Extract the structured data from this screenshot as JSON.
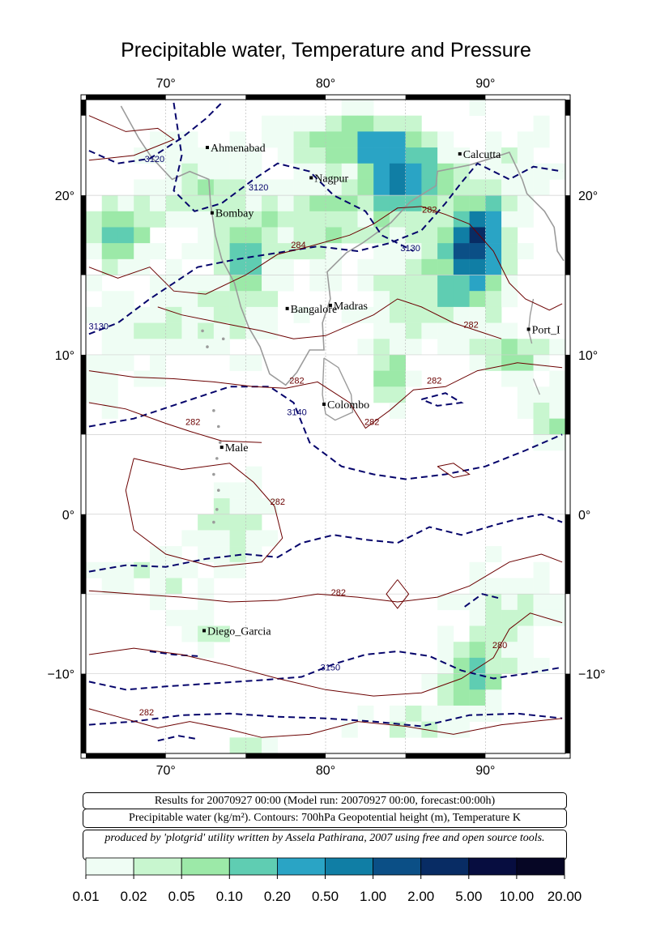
{
  "title": "Precipitable water, Temperature and Pressure",
  "map": {
    "lon_range": [
      65,
      95
    ],
    "lat_range": [
      -15,
      26
    ],
    "lon_ticks": [
      {
        "value": 70,
        "label": "70°"
      },
      {
        "value": 80,
        "label": "80°"
      },
      {
        "value": 90,
        "label": "90°"
      }
    ],
    "lat_ticks": [
      {
        "value": 20,
        "label": "20°"
      },
      {
        "value": 10,
        "label": "10°"
      },
      {
        "value": 0,
        "label": "0°"
      },
      {
        "value": -10,
        "label": "−10°"
      }
    ],
    "places": [
      {
        "name": "Ahmenabad",
        "lon": 72.6,
        "lat": 23.0
      },
      {
        "name": "Nagpur",
        "lon": 79.1,
        "lat": 21.1
      },
      {
        "name": "Calcutta",
        "lon": 88.4,
        "lat": 22.6
      },
      {
        "name": "Bombay",
        "lon": 72.9,
        "lat": 18.9
      },
      {
        "name": "Bangalore",
        "lon": 77.6,
        "lat": 12.9
      },
      {
        "name": "Madras",
        "lon": 80.3,
        "lat": 13.1
      },
      {
        "name": "Port_I",
        "lon": 92.7,
        "lat": 11.6
      },
      {
        "name": "Colombo",
        "lon": 79.9,
        "lat": 6.9
      },
      {
        "name": "Male",
        "lon": 73.5,
        "lat": 4.2
      },
      {
        "name": "Diego_Garcia",
        "lon": 72.4,
        "lat": -7.3
      }
    ],
    "contour_labels": [
      {
        "text": "3120",
        "lon": 69.3,
        "lat": 22.1,
        "kind": "height"
      },
      {
        "text": "3120",
        "lon": 75.8,
        "lat": 20.3,
        "kind": "height"
      },
      {
        "text": "3130",
        "lon": 85.3,
        "lat": 16.5,
        "kind": "height"
      },
      {
        "text": "3130",
        "lon": 65.8,
        "lat": 11.6,
        "kind": "height"
      },
      {
        "text": "3140",
        "lon": 78.2,
        "lat": 6.2,
        "kind": "height"
      },
      {
        "text": "3150",
        "lon": 80.3,
        "lat": -9.8,
        "kind": "height"
      },
      {
        "text": "284",
        "lon": 78.3,
        "lat": 16.7,
        "kind": "temp"
      },
      {
        "text": "282",
        "lon": 86.5,
        "lat": 18.9,
        "kind": "temp"
      },
      {
        "text": "282",
        "lon": 89.1,
        "lat": 11.7,
        "kind": "temp"
      },
      {
        "text": "282",
        "lon": 86.8,
        "lat": 8.2,
        "kind": "temp"
      },
      {
        "text": "282",
        "lon": 78.2,
        "lat": 8.2,
        "kind": "temp"
      },
      {
        "text": "282",
        "lon": 71.7,
        "lat": 5.6,
        "kind": "temp"
      },
      {
        "text": "282",
        "lon": 82.9,
        "lat": 5.6,
        "kind": "temp"
      },
      {
        "text": "282",
        "lon": 77.0,
        "lat": 0.6,
        "kind": "temp"
      },
      {
        "text": "282",
        "lon": 80.8,
        "lat": -5.1,
        "kind": "temp"
      },
      {
        "text": "280",
        "lon": 90.9,
        "lat": -8.4,
        "kind": "temp"
      },
      {
        "text": "282",
        "lon": 68.8,
        "lat": -12.6,
        "kind": "temp"
      }
    ]
  },
  "info": {
    "results_line": "Results for 20070927 00:00 (Model run: 20070927 00:00, forecast:00:00h)",
    "variables_line": "Precipitable water (kg/m²).  Contours: 700hPa Geopotential height (m), Temperature K",
    "credit_line": "produced by 'plotgrid' utility written by Assela Pathirana, 2007 using free and open source tools."
  },
  "legend": {
    "labels": [
      "0.01",
      "0.02",
      "0.05",
      "0.10",
      "0.20",
      "0.50",
      "1.00",
      "2.00",
      "5.00",
      "10.00",
      "20.00"
    ],
    "colors": [
      "#effdf4",
      "#c8f6cf",
      "#9ce9a8",
      "#5fcdb2",
      "#2aa4c5",
      "#107ea5",
      "#0b4f86",
      "#082c64",
      "#070d40",
      "#060625"
    ]
  },
  "colors": {
    "height_contour": "#05046b",
    "temp_contour": "#6b0000",
    "coastline": "#9b9b9b"
  }
}
